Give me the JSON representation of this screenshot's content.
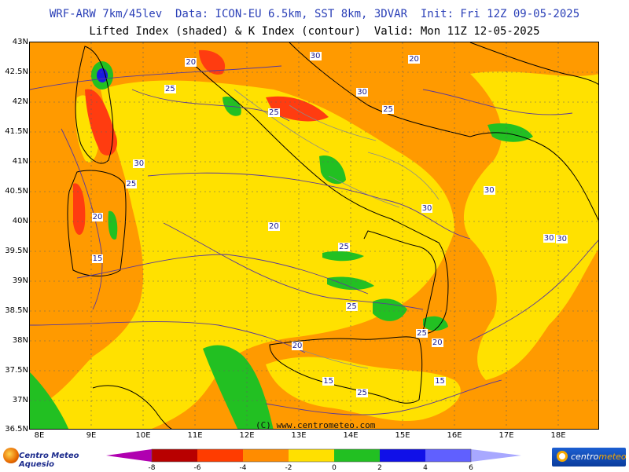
{
  "header": {
    "title_line1": "WRF-ARW 7km/45lev  Data: ICON-EU 6.5km, SST 8km, 3DVAR  Init: Fri 12Z 09-05-2025",
    "title_line2": "Lifted Index (shaded) & K Index (contour)  Valid: Mon 11Z 12-05-2025"
  },
  "axes": {
    "lat_labels": [
      "43N",
      "42.5N",
      "42N",
      "41.5N",
      "41N",
      "40.5N",
      "40N",
      "39.5N",
      "39N",
      "38.5N",
      "38N",
      "37.5N",
      "37N",
      "36.5N"
    ],
    "lon_labels": [
      "8E",
      "9E",
      "10E",
      "11E",
      "12E",
      "13E",
      "14E",
      "15E",
      "16E",
      "17E",
      "18E"
    ]
  },
  "k_index_labels": [
    {
      "text": "20",
      "lon": 10.9,
      "lat": 42.65
    },
    {
      "text": "25",
      "lon": 10.5,
      "lat": 42.2
    },
    {
      "text": "25",
      "lon": 12.5,
      "lat": 41.8
    },
    {
      "text": "30",
      "lon": 13.3,
      "lat": 42.75
    },
    {
      "text": "20",
      "lon": 15.2,
      "lat": 42.7
    },
    {
      "text": "30",
      "lon": 14.2,
      "lat": 42.15
    },
    {
      "text": "25",
      "lon": 14.7,
      "lat": 41.85
    },
    {
      "text": "30",
      "lon": 9.9,
      "lat": 40.95
    },
    {
      "text": "25",
      "lon": 9.75,
      "lat": 40.6
    },
    {
      "text": "20",
      "lon": 9.1,
      "lat": 40.05
    },
    {
      "text": "15",
      "lon": 9.1,
      "lat": 39.35
    },
    {
      "text": "20",
      "lon": 12.5,
      "lat": 39.9
    },
    {
      "text": "25",
      "lon": 13.85,
      "lat": 39.55
    },
    {
      "text": "30",
      "lon": 15.45,
      "lat": 40.2
    },
    {
      "text": "30",
      "lon": 16.65,
      "lat": 40.5
    },
    {
      "text": "30",
      "lon": 17.8,
      "lat": 39.7
    },
    {
      "text": "30",
      "lon": 18.05,
      "lat": 39.68
    },
    {
      "text": "25",
      "lon": 14.0,
      "lat": 38.55
    },
    {
      "text": "25",
      "lon": 15.35,
      "lat": 38.1
    },
    {
      "text": "20",
      "lon": 15.65,
      "lat": 37.95
    },
    {
      "text": "20",
      "lon": 12.95,
      "lat": 37.9
    },
    {
      "text": "15",
      "lon": 13.55,
      "lat": 37.3
    },
    {
      "text": "25",
      "lon": 14.2,
      "lat": 37.1
    },
    {
      "text": "15",
      "lon": 15.7,
      "lat": 37.3
    }
  ],
  "copyright": "(C) www.centrometeo.com",
  "colorbar": {
    "ticks": [
      "-8",
      "-6",
      "-4",
      "-2",
      "0",
      "2",
      "4",
      "6"
    ],
    "colors": [
      "#b000b0",
      "#b80000",
      "#ff3c00",
      "#ff8c00",
      "#ffe000",
      "#22c022",
      "#1010e8",
      "#6060ff",
      "#a8a8ff"
    ]
  },
  "logos": {
    "left": "Centro Meteo Aquesio",
    "right_a": "centro",
    "right_b": "meteo"
  },
  "map_colors": {
    "yellow": "#ffe100",
    "orange": "#ff9a00",
    "red": "#ff3c10",
    "darkred": "#c01010",
    "green": "#22c022",
    "blue": "#1a1ae0",
    "coast": "#000000",
    "border": "#8c8c8c",
    "contour": "#5a3a9a",
    "grid": "#606060"
  }
}
